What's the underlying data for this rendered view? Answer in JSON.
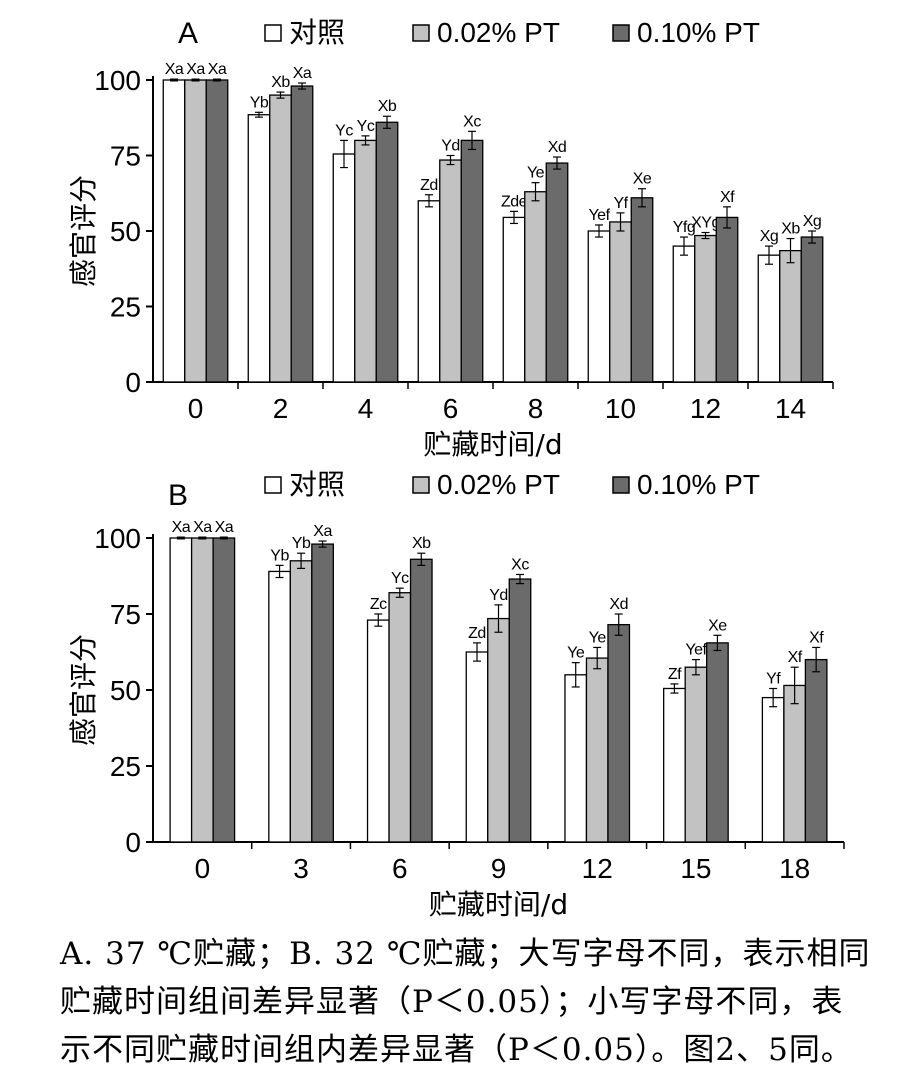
{
  "colors": {
    "control": "#ffffff",
    "pt002": "#c2c2c2",
    "pt010": "#6b6b6b",
    "stroke": "#000000"
  },
  "legend": {
    "control": "对照",
    "pt002": "0.02% PT",
    "pt010": "0.10% PT"
  },
  "chart_data": [
    {
      "type": "bar",
      "panel_label": "A",
      "xlabel": "贮藏时间/d",
      "ylabel": "感官评分",
      "ylim": [
        0,
        100
      ],
      "yticks": [
        0,
        25,
        50,
        75,
        100
      ],
      "categories": [
        "0",
        "2",
        "4",
        "6",
        "8",
        "10",
        "12",
        "14"
      ],
      "legend_position": "top",
      "series": [
        {
          "name": "对照",
          "color": "#ffffff",
          "values": [
            100,
            88.5,
            75.5,
            60,
            54.5,
            50,
            45,
            42
          ],
          "errors": [
            0.3,
            0.8,
            4.5,
            2,
            2,
            2,
            3,
            3
          ],
          "labels": [
            "Xa",
            "Yb",
            "Yc",
            "Zd",
            "Zde",
            "Yef",
            "Yfg",
            "Xg"
          ]
        },
        {
          "name": "0.02% PT",
          "color": "#c2c2c2",
          "values": [
            100,
            95,
            80,
            73.5,
            63,
            53,
            48.5,
            43.5
          ],
          "errors": [
            0.3,
            1,
            1.5,
            1.5,
            3,
            3,
            1,
            4
          ],
          "labels": [
            "Xa",
            "Xb",
            "Yc",
            "Yd",
            "Ye",
            "Yf",
            "XYg",
            "Xb"
          ]
        },
        {
          "name": "0.10% PT",
          "color": "#6b6b6b",
          "values": [
            100,
            98,
            86,
            80,
            72.5,
            61,
            54.5,
            48
          ],
          "errors": [
            0.3,
            1,
            2,
            3,
            2,
            3,
            3.5,
            2
          ],
          "labels": [
            "Xa",
            "Xa",
            "Xb",
            "Xc",
            "Xd",
            "Xe",
            "Xf",
            "Xg"
          ]
        }
      ]
    },
    {
      "type": "bar",
      "panel_label": "B",
      "xlabel": "贮藏时间/d",
      "ylabel": "感官评分",
      "ylim": [
        0,
        100
      ],
      "yticks": [
        0,
        25,
        50,
        75,
        100
      ],
      "categories": [
        "0",
        "3",
        "6",
        "9",
        "12",
        "15",
        "18"
      ],
      "legend_position": "top",
      "series": [
        {
          "name": "对照",
          "color": "#ffffff",
          "values": [
            100,
            89,
            73,
            62.5,
            55,
            50.5,
            47.5
          ],
          "errors": [
            0.3,
            2,
            2,
            3,
            4,
            1.5,
            3
          ],
          "labels": [
            "Xa",
            "Yb",
            "Zc",
            "Zd",
            "Ye",
            "Zf",
            "Yf"
          ]
        },
        {
          "name": "0.02% PT",
          "color": "#c2c2c2",
          "values": [
            100,
            92.5,
            82,
            73.5,
            60.5,
            57.5,
            51.5
          ],
          "errors": [
            0.3,
            2.5,
            1.5,
            4.5,
            3.5,
            2.5,
            6
          ],
          "labels": [
            "Xa",
            "Yb",
            "Yc",
            "Yd",
            "Ye",
            "Yef",
            "Xf"
          ]
        },
        {
          "name": "0.10% PT",
          "color": "#6b6b6b",
          "values": [
            100,
            98,
            93,
            86.5,
            71.5,
            65.5,
            60
          ],
          "errors": [
            0.3,
            1,
            2,
            1.5,
            3.5,
            2.5,
            4
          ],
          "labels": [
            "Xa",
            "Xa",
            "Xb",
            "Xc",
            "Xd",
            "Xe",
            "Xf"
          ]
        }
      ]
    }
  ],
  "caption": {
    "line1": "A. 37 ℃贮藏；B. 32 ℃贮藏；大写字母不同，表示相同",
    "line2": "贮藏时间组间差异显著（P＜0.05）；小写字母不同，表",
    "line3": "示不同贮藏时间组内差异显著（P＜0.05）。图2、5同。"
  }
}
